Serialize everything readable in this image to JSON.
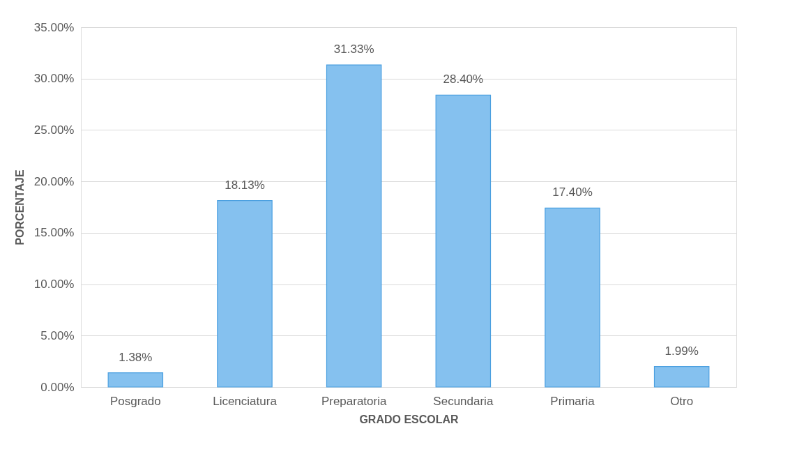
{
  "chart_data": {
    "type": "bar",
    "xlabel": "GRADO ESCOLAR",
    "ylabel": "PORCENTAJE",
    "categories": [
      "Posgrado",
      "Licenciatura",
      "Preparatoria",
      "Secundaria",
      "Primaria",
      "Otro"
    ],
    "values": [
      1.38,
      18.13,
      31.33,
      28.4,
      17.4,
      1.99
    ],
    "color": "#85c1ef",
    "value_labels": [
      "1.38%",
      "18.13%",
      "31.33%",
      "28.40%",
      "17.40%",
      "1.99%"
    ],
    "ylim": [
      0,
      35
    ],
    "yticks": [
      {
        "value": 0,
        "label": "0.00%"
      },
      {
        "value": 5,
        "label": "5.00%"
      },
      {
        "value": 10,
        "label": "10.00%"
      },
      {
        "value": 15,
        "label": "15.00%"
      },
      {
        "value": 20,
        "label": "20.00%"
      },
      {
        "value": 25,
        "label": "25.00%"
      },
      {
        "value": 30,
        "label": "30.00%"
      },
      {
        "value": 35,
        "label": "35.00%"
      }
    ],
    "grid": "y"
  }
}
